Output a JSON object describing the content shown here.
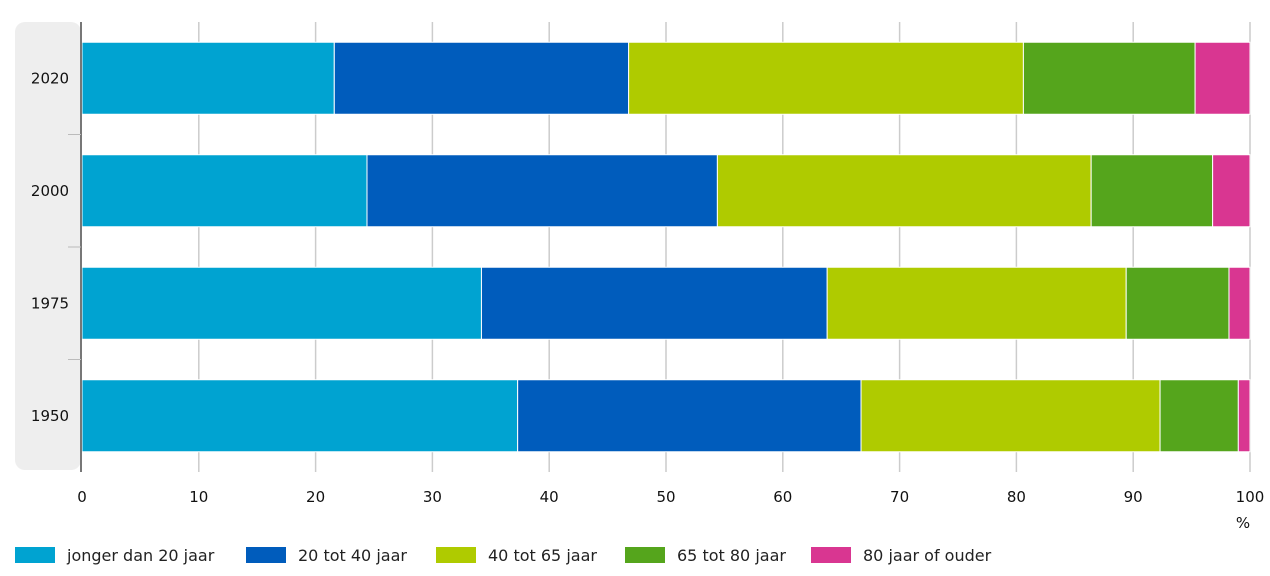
{
  "chart_data": {
    "type": "bar",
    "orientation": "horizontal",
    "stacked": true,
    "categories": [
      "2020",
      "2000",
      "1975",
      "1950"
    ],
    "series": [
      {
        "name": "jonger dan 20 jaar",
        "color": "#00a3d1",
        "values": [
          21.6,
          24.4,
          34.2,
          37.3
        ]
      },
      {
        "name": "20 tot 40 jaar",
        "color": "#005cbc",
        "values": [
          25.2,
          30.0,
          29.6,
          29.4
        ]
      },
      {
        "name": "40 tot 65 jaar",
        "color": "#afcb00",
        "values": [
          33.8,
          32.0,
          25.6,
          25.6
        ]
      },
      {
        "name": "65 tot 80 jaar",
        "color": "#55a51c",
        "values": [
          14.7,
          10.4,
          8.8,
          6.7
        ]
      },
      {
        "name": "80 jaar of ouder",
        "color": "#d93691",
        "values": [
          4.7,
          3.2,
          1.8,
          1.0
        ]
      }
    ],
    "xlim": [
      0,
      100
    ],
    "xticks": [
      "0",
      "10",
      "20",
      "30",
      "40",
      "50",
      "60",
      "70",
      "80",
      "90",
      "100"
    ],
    "xunit": "%",
    "grid": true,
    "legend": "bottom"
  }
}
